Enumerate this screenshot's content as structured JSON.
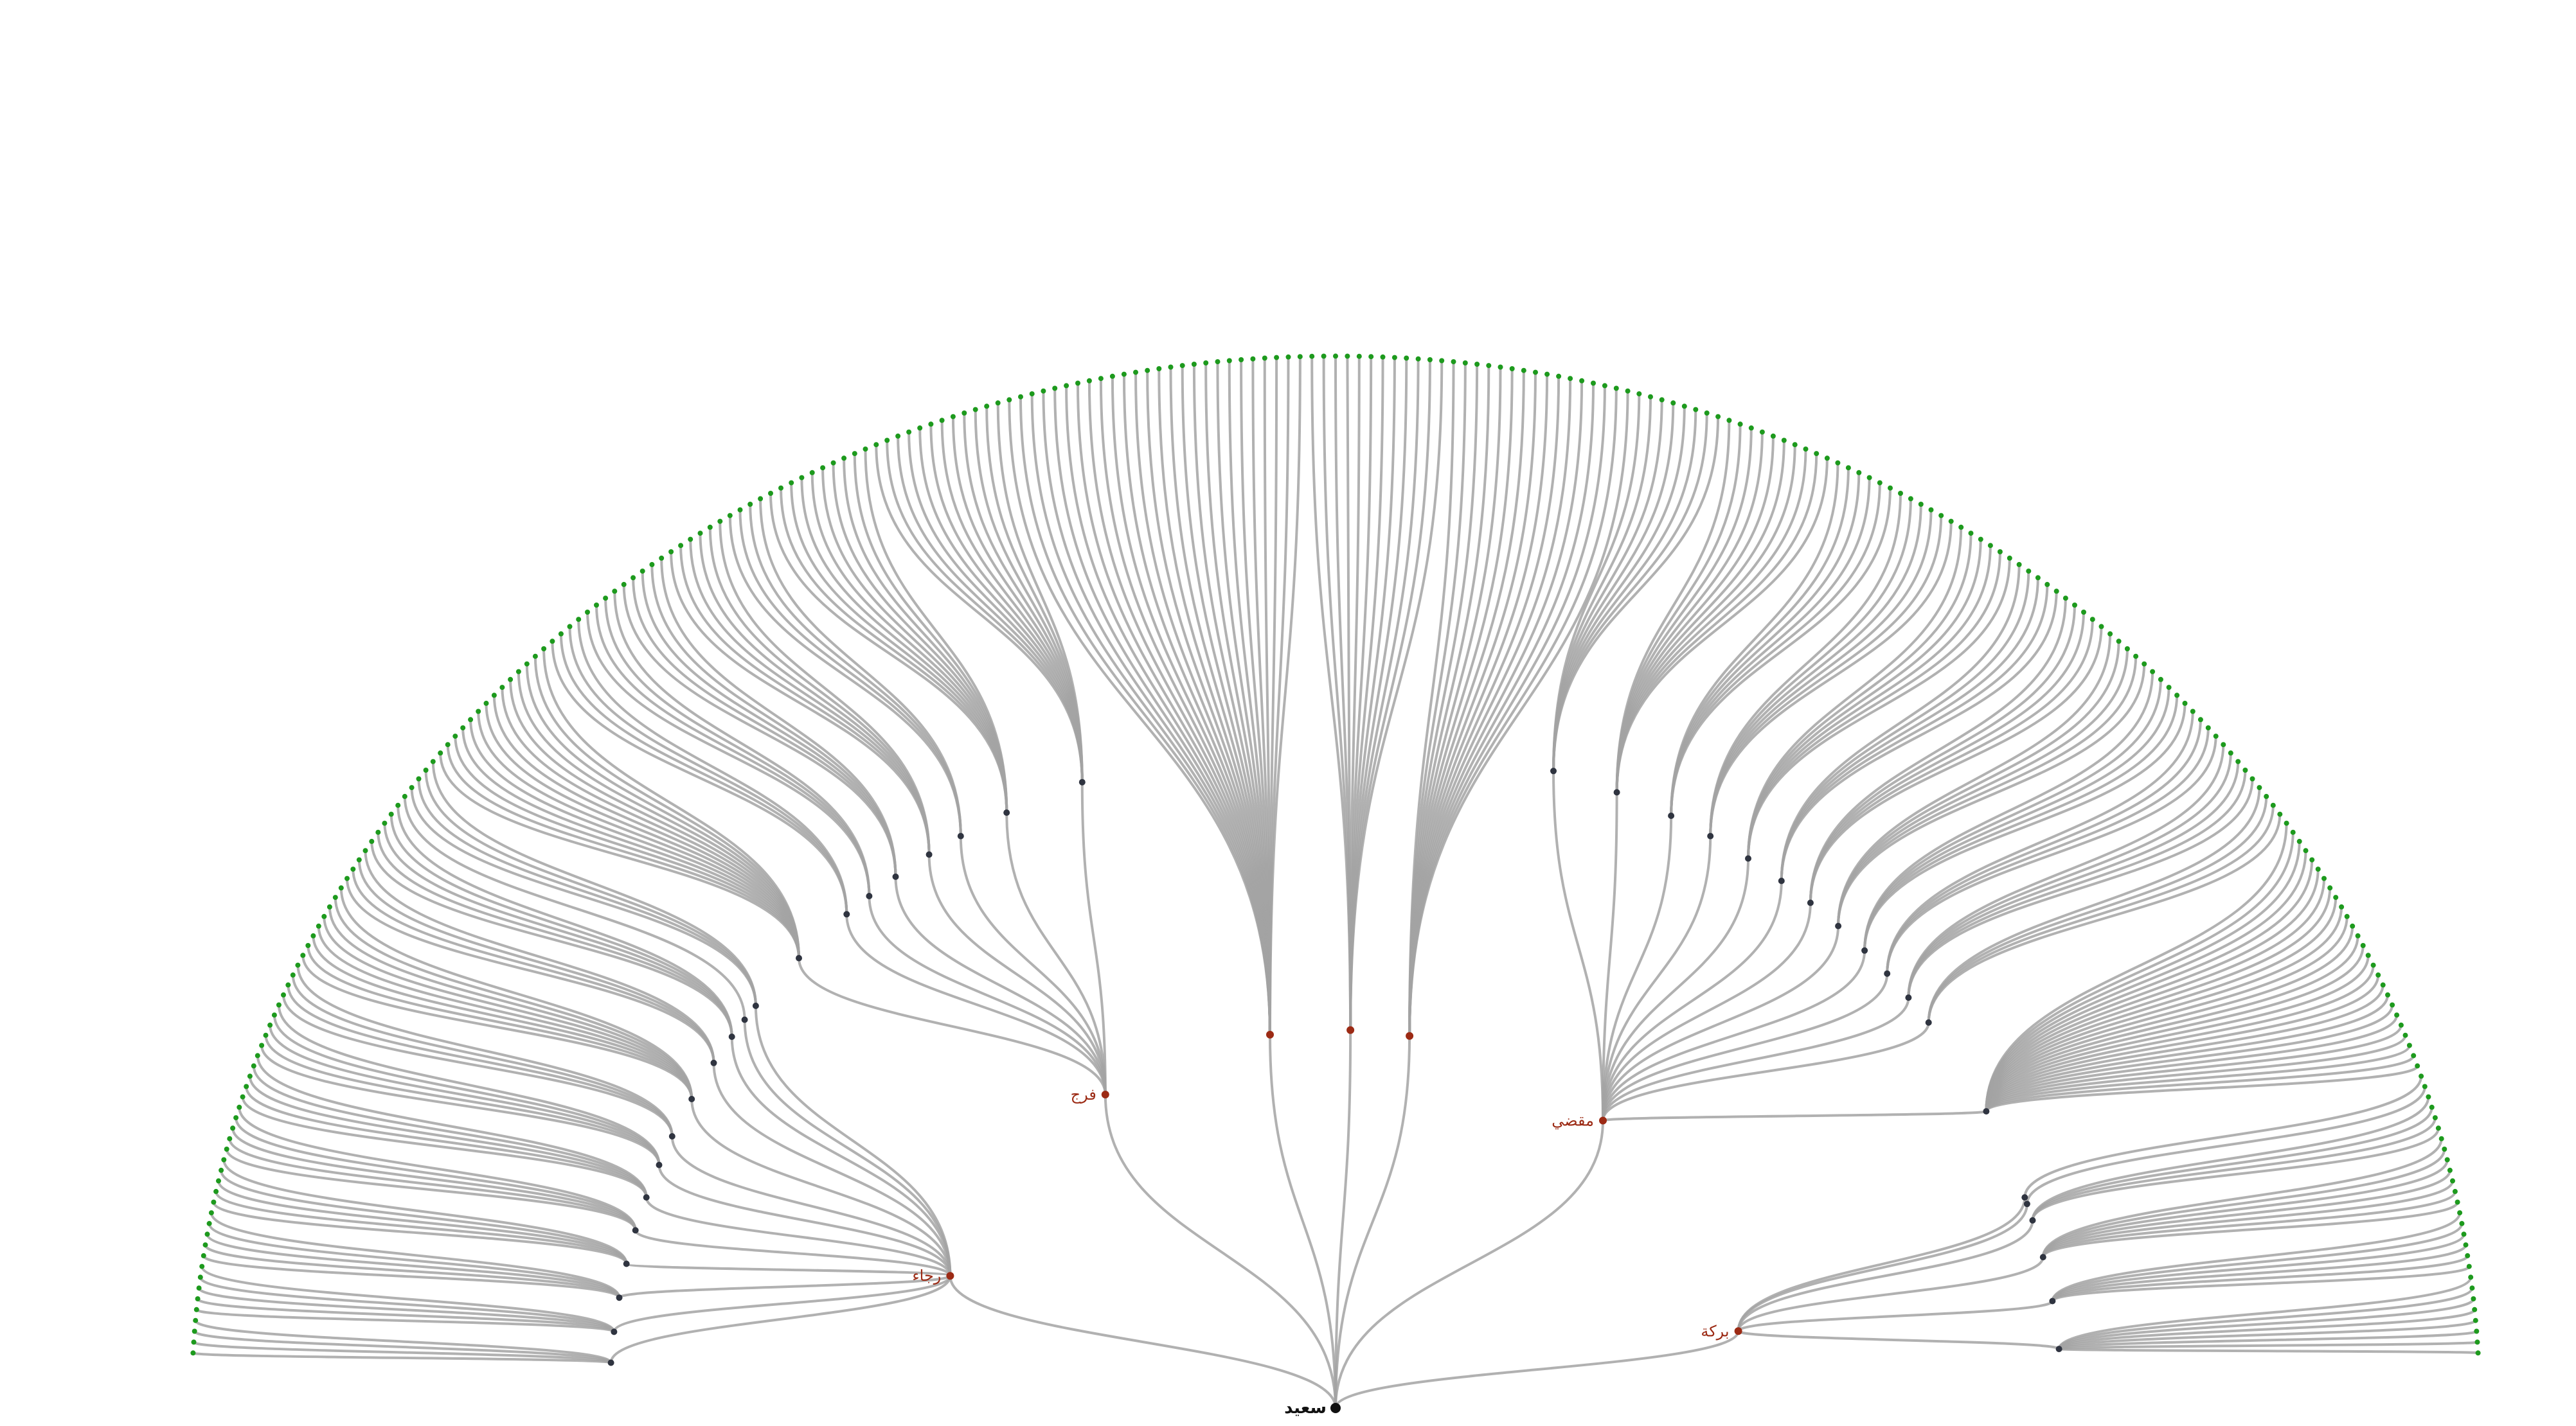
{
  "tree": {
    "name": "سعيد",
    "children": [
      {
        "name": "رجاء",
        "children": [
          {
            "name": "",
            "kids": 4
          },
          {
            "name": "",
            "kids": 5
          },
          {
            "name": "",
            "kids": 5
          },
          {
            "name": "",
            "kids": 5
          },
          {
            "name": "",
            "kids": 5
          },
          {
            "name": "",
            "kids": 5
          },
          {
            "name": "",
            "kids": 5
          },
          {
            "name": "",
            "kids": 4
          },
          {
            "name": "",
            "kids": 8
          },
          {
            "name": "",
            "kids": 4
          },
          {
            "name": "",
            "kids": 5
          },
          {
            "name": "",
            "kids": 1
          },
          {
            "name": "",
            "kids": 4
          }
        ]
      },
      {
        "name": "فرج",
        "children": [
          {
            "name": "",
            "kids": 14
          },
          {
            "name": "",
            "kids": 4
          },
          {
            "name": "",
            "kids": 4
          },
          {
            "name": "",
            "kids": 5
          },
          {
            "name": "",
            "kids": 6
          },
          {
            "name": "",
            "kids": 4
          },
          {
            "name": "",
            "kids": 10
          },
          {
            "name": "",
            "kids": 12
          }
        ]
      },
      {
        "name": "",
        "kids": 26
      },
      {
        "name": "",
        "kids": 12
      },
      {
        "name": "",
        "kids": 16
      },
      {
        "name": "مقضي",
        "children": [
          {
            "name": "",
            "kids": 8
          },
          {
            "name": "",
            "kids": 10
          },
          {
            "name": "",
            "kids": 6
          },
          {
            "name": "",
            "kids": 6
          },
          {
            "name": "",
            "kids": 6
          },
          {
            "name": "",
            "kids": 5
          },
          {
            "name": "",
            "kids": 5
          },
          {
            "name": "",
            "kids": 5
          },
          {
            "name": "",
            "kids": 5
          },
          {
            "name": "",
            "kids": 4
          },
          {
            "name": "",
            "kids": 5
          },
          {
            "name": "",
            "kids": 4
          },
          {
            "name": "",
            "kids": 26
          }
        ]
      },
      {
        "name": "بركة",
        "children": [
          {
            "name": "",
            "kids": 1
          },
          {
            "name": "",
            "kids": 1
          },
          {
            "name": "",
            "kids": 4
          },
          {
            "name": "",
            "kids": 7
          },
          {
            "name": "",
            "kids": 6
          },
          {
            "name": "",
            "kids": 8
          }
        ]
      }
    ]
  },
  "colors": {
    "link": "#a3a3a3",
    "root": "#111111",
    "level1": "#9c2a14",
    "level2": "#2f3440",
    "level3": "#8a1e88",
    "leaf": "#1d9a1d"
  }
}
